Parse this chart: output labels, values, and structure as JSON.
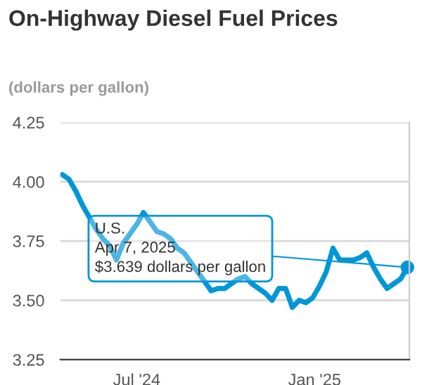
{
  "chart_data": {
    "type": "line",
    "title": "On-Highway Diesel Fuel Prices",
    "subtitle": "(dollars per gallon)",
    "x": [
      "2024-04-15",
      "2024-04-22",
      "2024-04-29",
      "2024-05-06",
      "2024-05-13",
      "2024-05-20",
      "2024-05-27",
      "2024-06-03",
      "2024-06-10",
      "2024-06-17",
      "2024-06-24",
      "2024-07-01",
      "2024-07-08",
      "2024-07-15",
      "2024-07-22",
      "2024-07-29",
      "2024-08-05",
      "2024-08-12",
      "2024-08-19",
      "2024-08-26",
      "2024-09-02",
      "2024-09-09",
      "2024-09-16",
      "2024-09-23",
      "2024-09-30",
      "2024-10-07",
      "2024-10-14",
      "2024-10-21",
      "2024-10-28",
      "2024-11-04",
      "2024-11-11",
      "2024-11-18",
      "2024-11-25",
      "2024-12-02",
      "2024-12-09",
      "2024-12-16",
      "2024-12-23",
      "2024-12-30",
      "2025-01-06",
      "2025-01-13",
      "2025-01-20",
      "2025-01-27",
      "2025-02-03",
      "2025-02-10",
      "2025-02-17",
      "2025-02-24",
      "2025-03-03",
      "2025-03-10",
      "2025-03-17",
      "2025-03-24",
      "2025-03-31",
      "2025-04-07"
    ],
    "series": [
      {
        "color": "#0096d7",
        "values": [
          4.03,
          4.01,
          3.96,
          3.9,
          3.85,
          3.8,
          3.76,
          3.73,
          3.67,
          3.74,
          3.78,
          3.82,
          3.87,
          3.83,
          3.79,
          3.78,
          3.76,
          3.72,
          3.7,
          3.66,
          3.62,
          3.58,
          3.54,
          3.55,
          3.55,
          3.57,
          3.59,
          3.6,
          3.57,
          3.55,
          3.53,
          3.5,
          3.55,
          3.55,
          3.47,
          3.5,
          3.49,
          3.51,
          3.56,
          3.62,
          3.72,
          3.67,
          3.67,
          3.67,
          3.68,
          3.7,
          3.64,
          3.59,
          3.55,
          3.57,
          3.59,
          3.639
        ]
      }
    ],
    "xlim": [
      "2024-04-13",
      "2025-04-09"
    ],
    "xticks": [
      {
        "value": "2024-07-01",
        "label": "Jul '24"
      },
      {
        "value": "2025-01-01",
        "label": "Jan '25"
      }
    ],
    "ylim": [
      3.25,
      4.25
    ],
    "yticks": [
      3.25,
      {
        "value": 3.5,
        "label": "3.50"
      },
      3.75,
      {
        "value": 4.0,
        "label": "4.00"
      },
      4.25
    ],
    "grid": "y",
    "line_style": "solid",
    "annotations": [
      {
        "text": "U.S.\nApr 7, 2025\n$3.639 dollars per gallon",
        "x": "2025-04-07",
        "y": 3.639
      }
    ]
  }
}
